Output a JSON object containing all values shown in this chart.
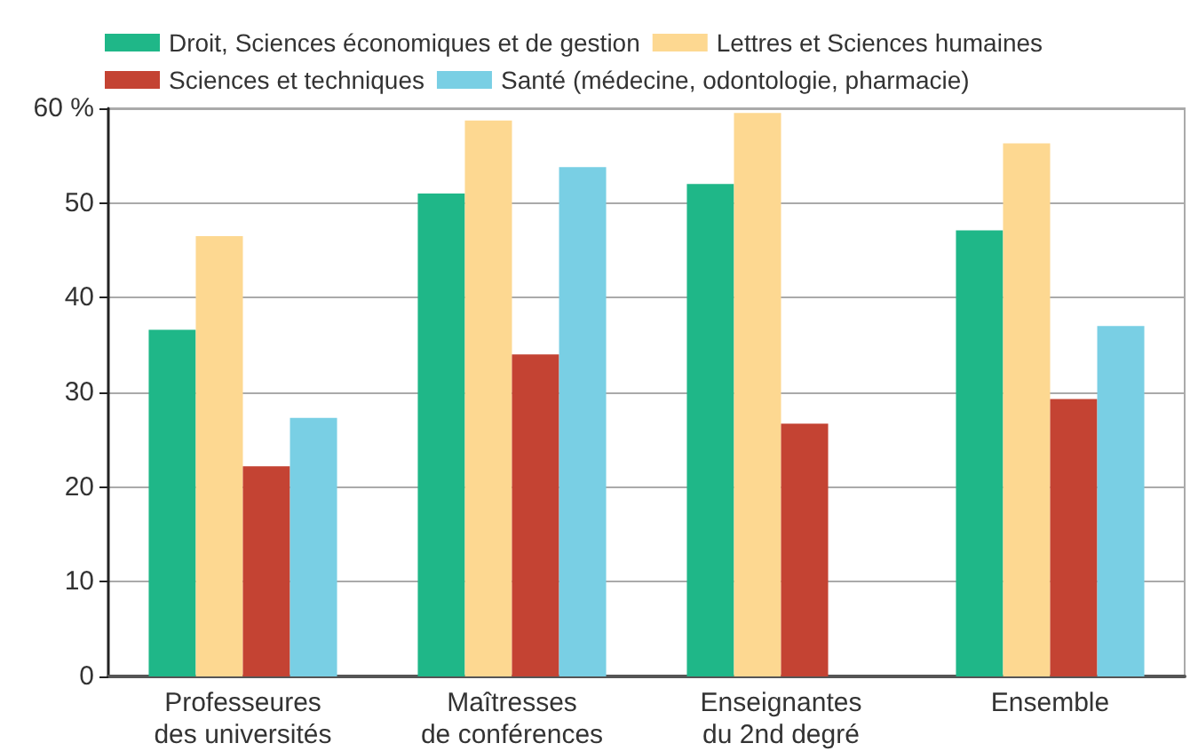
{
  "chart_data": {
    "type": "bar",
    "categories": [
      "Professeures\ndes universités",
      "Maîtresses\nde conférences",
      "Enseignantes\ndu 2nd degré",
      "Ensemble"
    ],
    "series": [
      {
        "name": "Droit, Sciences économiques et de gestion",
        "color": "#1fb788",
        "values": [
          36.6,
          51.0,
          52.0,
          47.1
        ]
      },
      {
        "name": "Lettres et Sciences humaines",
        "color": "#fdd891",
        "values": [
          46.5,
          58.7,
          59.5,
          56.3
        ]
      },
      {
        "name": "Sciences et techniques",
        "color": "#c44333",
        "values": [
          22.2,
          34.0,
          26.7,
          29.3
        ]
      },
      {
        "name": "Santé (médecine, odontologie, pharmacie)",
        "color": "#79cfe4",
        "values": [
          27.3,
          53.8,
          null,
          37.0
        ]
      }
    ],
    "ylim": [
      0,
      60
    ],
    "yticks": [
      0,
      10,
      20,
      30,
      40,
      50,
      {
        "value": 60,
        "label": "60 %"
      }
    ],
    "grid": "y",
    "legend": "top"
  }
}
